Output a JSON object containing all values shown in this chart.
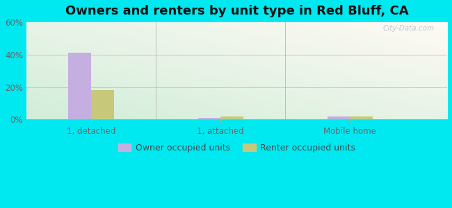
{
  "title": "Owners and renters by unit type in Red Bluff, CA",
  "categories": [
    "1, detached",
    "1, attached",
    "Mobile home"
  ],
  "owner_values": [
    41,
    1,
    2
  ],
  "renter_values": [
    18,
    2,
    2
  ],
  "owner_color": "#c5aee0",
  "renter_color": "#c8c87a",
  "background_outer": "#00e8f0",
  "ylim": [
    0,
    60
  ],
  "yticks": [
    0,
    20,
    40,
    60
  ],
  "ytick_labels": [
    "0%",
    "20%",
    "40%",
    "60%"
  ],
  "legend_owner": "Owner occupied units",
  "legend_renter": "Renter occupied units",
  "watermark": "City-Data.com",
  "title_fontsize": 13,
  "tick_fontsize": 8.5,
  "legend_fontsize": 9,
  "bar_width": 0.35,
  "group_positions": [
    1,
    3,
    5
  ],
  "xlim": [
    0,
    6.5
  ]
}
